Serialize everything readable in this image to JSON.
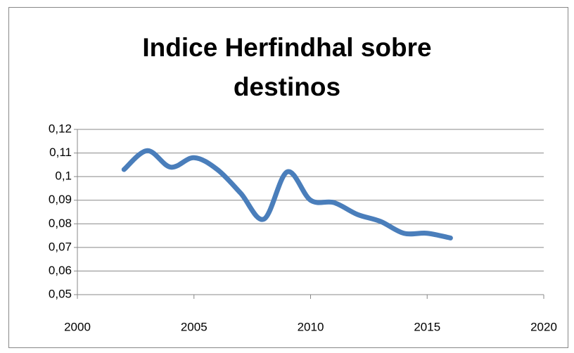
{
  "chart_data": {
    "type": "line",
    "title": "Indice Herfindhal sobre destinos",
    "x": [
      2002,
      2003,
      2004,
      2005,
      2006,
      2007,
      2008,
      2009,
      2010,
      2011,
      2012,
      2013,
      2014,
      2015,
      2016
    ],
    "series": [
      {
        "name": "Indice Herfindhal",
        "color": "#4a7ebb",
        "values": [
          0.103,
          0.111,
          0.104,
          0.108,
          0.103,
          0.093,
          0.082,
          0.102,
          0.09,
          0.089,
          0.084,
          0.081,
          0.076,
          0.076,
          0.074
        ]
      }
    ],
    "xlim": [
      2000,
      2020
    ],
    "xticks": [
      2000,
      2005,
      2010,
      2015,
      2020
    ],
    "ylim": [
      0.05,
      0.12
    ],
    "yticks": [
      {
        "value": 0.05,
        "label": "0,05"
      },
      {
        "value": 0.06,
        "label": "0,06"
      },
      {
        "value": 0.07,
        "label": "0,07"
      },
      {
        "value": 0.08,
        "label": "0,08"
      },
      {
        "value": 0.09,
        "label": "0,09"
      },
      {
        "value": 0.1,
        "label": "0,1"
      },
      {
        "value": 0.11,
        "label": "0,11"
      },
      {
        "value": 0.12,
        "label": "0,12"
      }
    ],
    "grid": true,
    "smooth": true
  }
}
